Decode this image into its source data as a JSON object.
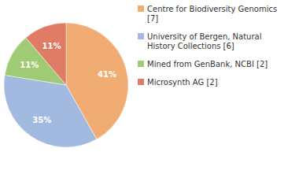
{
  "chart_data": {
    "type": "pie",
    "categories": [
      "Centre for Biodiversity Genomics [7]",
      "University of Bergen, Natural History Collections [6]",
      "Mined from GenBank, NCBI [2]",
      "Microsynth AG [2]"
    ],
    "values": [
      41,
      35,
      11,
      11
    ],
    "value_labels": [
      "41%",
      "35%",
      "11%",
      "11%"
    ],
    "colors": [
      "#f0ac72",
      "#a2bae0",
      "#9fcb74",
      "#e07c66"
    ],
    "data_labels": true,
    "legend": "right"
  }
}
